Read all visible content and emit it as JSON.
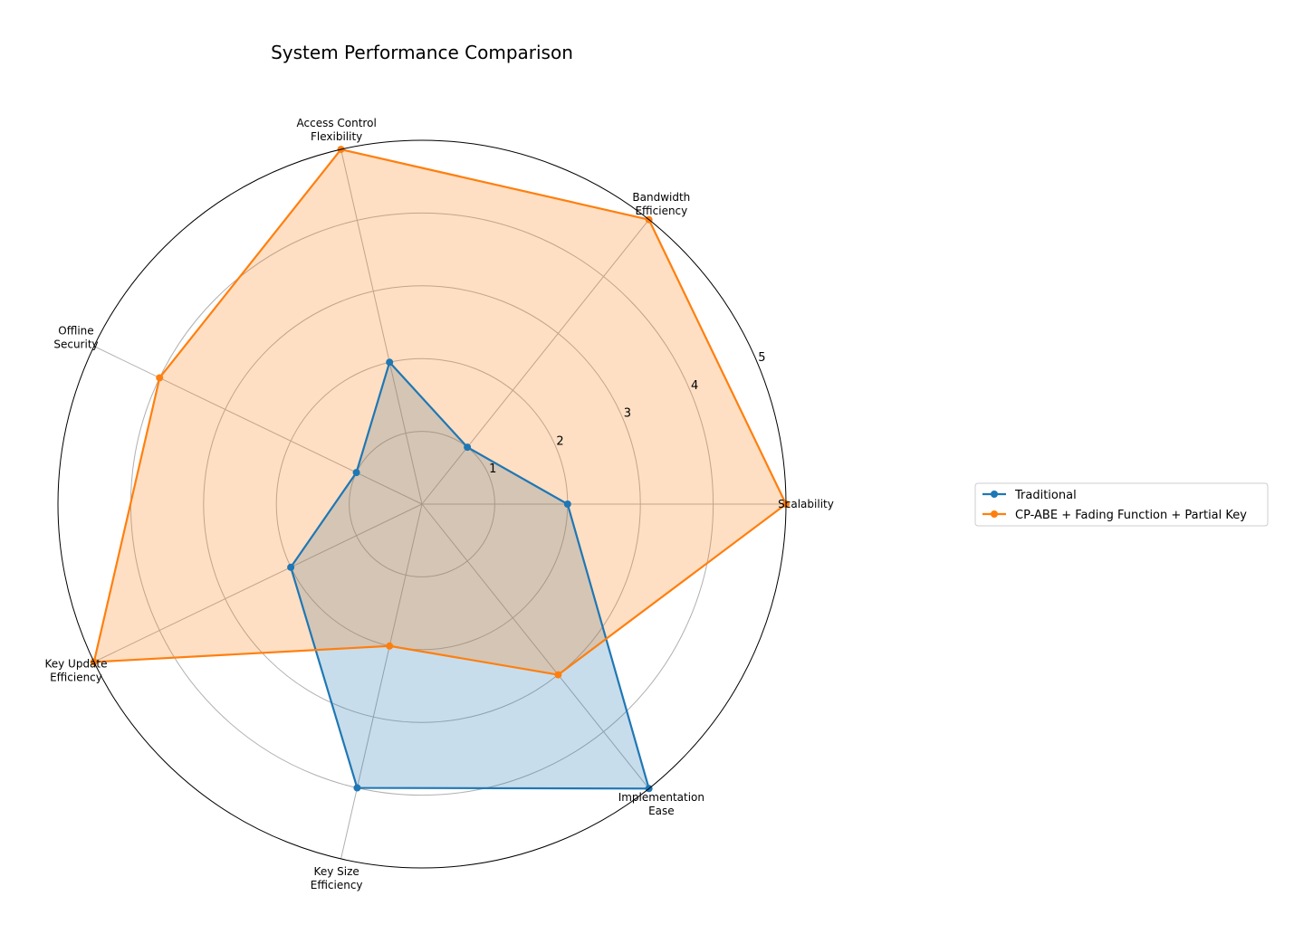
{
  "chart_data": {
    "type": "radar",
    "title": "System Performance Comparison",
    "axes": [
      [
        "Scalability"
      ],
      [
        "Bandwidth",
        "Efficiency"
      ],
      [
        "Access Control",
        "Flexibility"
      ],
      [
        "Offline",
        "Security"
      ],
      [
        "Key Update",
        "Efficiency"
      ],
      [
        "Key Size",
        "Efficiency"
      ],
      [
        "Implementation",
        "Ease"
      ]
    ],
    "rmax": 5,
    "radial_ticks": [
      1,
      2,
      3,
      4,
      5
    ],
    "grid": true,
    "legend_position": "right",
    "series": [
      {
        "name": "Traditional",
        "color": "#1f77b4",
        "values": [
          2,
          1,
          2,
          1,
          2,
          4,
          5
        ]
      },
      {
        "name": "CP-ABE + Fading Function + Partial Key",
        "color": "#ff7f0e",
        "values": [
          5,
          5,
          5,
          4,
          5,
          2,
          3
        ]
      }
    ]
  }
}
